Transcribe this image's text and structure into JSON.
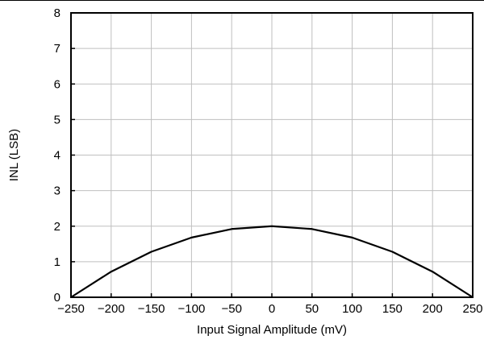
{
  "chart_data": {
    "type": "line",
    "title": "",
    "xlabel": "Input Signal Amplitude (mV)",
    "ylabel": "INL (LSB)",
    "xlim": [
      -250,
      250
    ],
    "ylim": [
      0,
      8
    ],
    "x_ticks": [
      -250,
      -200,
      -150,
      -100,
      -50,
      0,
      50,
      100,
      150,
      200,
      250
    ],
    "x_tick_labels": [
      "−250",
      "−200",
      "−150",
      "−100",
      "−50",
      "0",
      "50",
      "100",
      "150",
      "200",
      "250"
    ],
    "y_ticks": [
      0,
      1,
      2,
      3,
      4,
      5,
      6,
      7,
      8
    ],
    "y_tick_labels": [
      "0",
      "1",
      "2",
      "3",
      "4",
      "5",
      "6",
      "7",
      "8"
    ],
    "grid": true,
    "legend": "none",
    "line_color": "#000000",
    "grid_color": "#bfbfbf",
    "series": [
      {
        "x": [
          -250,
          -200,
          -150,
          -100,
          -50,
          0,
          50,
          100,
          150,
          200,
          250
        ],
        "values": [
          0,
          0.72,
          1.28,
          1.68,
          1.92,
          2.0,
          1.92,
          1.68,
          1.28,
          0.72,
          0
        ]
      }
    ]
  }
}
